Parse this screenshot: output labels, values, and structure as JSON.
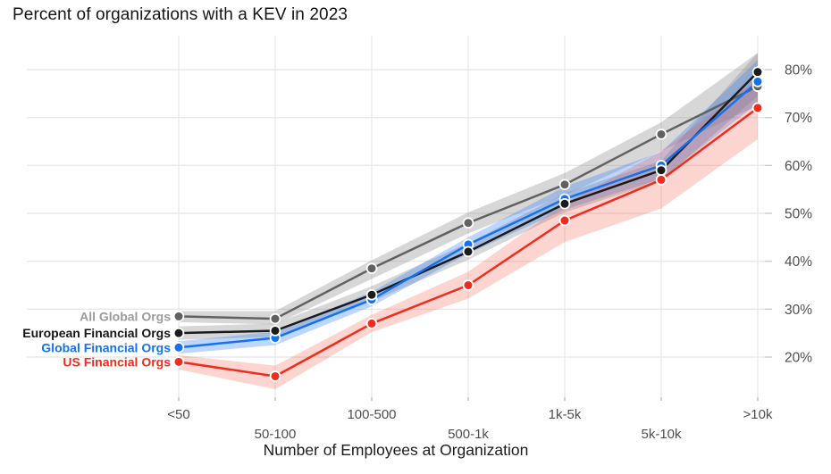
{
  "title": "Percent of organizations with a KEV in 2023",
  "x_axis_title": "Number of Employees at Organization",
  "chart_data": {
    "type": "line",
    "title": "Percent of organizations with a KEV in 2023",
    "xlabel": "Number of Employees at Organization",
    "ylabel": "",
    "categories": [
      "<50",
      "50-100",
      "100-500",
      "500-1k",
      "1k-5k",
      "5k-10k",
      ">10k"
    ],
    "y_tick_labels": [
      "20%",
      "30%",
      "40%",
      "50%",
      "60%",
      "70%",
      "80%"
    ],
    "y_tick_values": [
      20,
      30,
      40,
      50,
      60,
      70,
      80
    ],
    "ylim": [
      12,
      87
    ],
    "grid": true,
    "legend_position": "direct-labels-left-of-first-point",
    "background": "#ffffff",
    "gridline_color": "#e9e9e9",
    "tick_label_color": "#4f4f4f",
    "series": [
      {
        "name": "All Global Orgs",
        "color": "#616161",
        "label_color": "#9b9b9b",
        "band_color": "rgba(140,140,140,0.35)",
        "values": [
          28.5,
          28,
          38.5,
          48,
          56,
          66.5,
          76.5
        ],
        "band_low": [
          27.3,
          26.8,
          36.3,
          45.8,
          53.8,
          63.0,
          72.5
        ],
        "band_high": [
          29.6,
          29.6,
          40.2,
          50.2,
          58.4,
          69.0,
          83.5
        ]
      },
      {
        "name": "European Financial Orgs",
        "color": "#1b1b1b",
        "label_color": "#161616",
        "band_color": "rgba(140,140,140,0.35)",
        "values": [
          25,
          25.5,
          33,
          42,
          52,
          59,
          79.5
        ],
        "band_low": [
          23.6,
          24.2,
          31.6,
          40.3,
          50.2,
          56.8,
          74.5
        ],
        "band_high": [
          26.4,
          27.0,
          34.8,
          43.8,
          54.2,
          61.0,
          83.5
        ]
      },
      {
        "name": "Global Financial Orgs",
        "color": "#1472f0",
        "label_color": "#1472f0",
        "band_color": "rgba(60,130,246,0.33)",
        "values": [
          22,
          24,
          32,
          43.5,
          53,
          60,
          77.5
        ],
        "band_low": [
          20.7,
          22.5,
          30.6,
          41.6,
          50.8,
          57.2,
          73.0
        ],
        "band_high": [
          23.3,
          25.3,
          33.6,
          45.0,
          55.6,
          62.8,
          82.0
        ]
      },
      {
        "name": "US Financial Orgs",
        "color": "#ef2c1d",
        "label_color": "#ef2c1d",
        "band_color": "rgba(244,80,64,0.24)",
        "values": [
          19,
          16,
          27,
          35,
          48.5,
          57,
          72
        ],
        "band_low": [
          17.4,
          13.3,
          25.2,
          32.2,
          44.0,
          51.0,
          65.5
        ],
        "band_high": [
          20.4,
          18.2,
          28.8,
          37.8,
          52.0,
          63.0,
          78.0
        ]
      }
    ]
  }
}
